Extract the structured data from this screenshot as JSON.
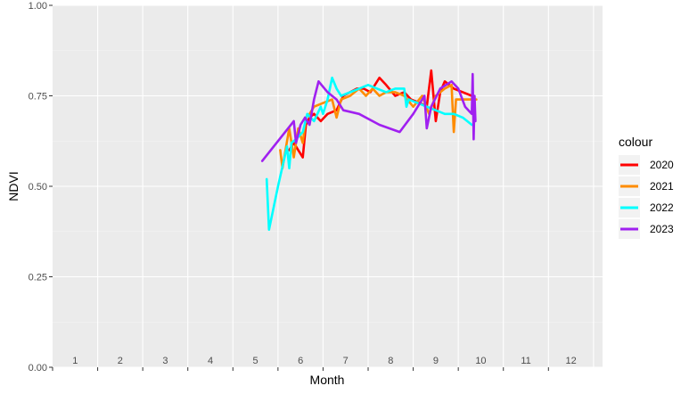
{
  "chart_data": {
    "type": "line",
    "title": "",
    "xlabel": "Month",
    "ylabel": "NDVI",
    "ylim": [
      0,
      1
    ],
    "xlim": [
      0.5,
      12.7
    ],
    "y_ticks": [
      "0.00",
      "0.25",
      "0.50",
      "0.75",
      "1.00"
    ],
    "x_tick_labels": [
      "1",
      "2",
      "3",
      "4",
      "5",
      "6",
      "7",
      "8",
      "9",
      "10",
      "11",
      "12"
    ],
    "grid": true,
    "legend": {
      "title": "colour",
      "placement": "right"
    },
    "series": [
      {
        "name": "2020",
        "color": "#ff0000",
        "points": [
          [
            5.75,
            0.6
          ],
          [
            5.85,
            0.62
          ],
          [
            5.95,
            0.6
          ],
          [
            6.05,
            0.58
          ],
          [
            6.12,
            0.67
          ],
          [
            6.2,
            0.69
          ],
          [
            6.3,
            0.7
          ],
          [
            6.45,
            0.68
          ],
          [
            6.6,
            0.7
          ],
          [
            6.8,
            0.71
          ],
          [
            6.95,
            0.75
          ],
          [
            7.1,
            0.76
          ],
          [
            7.25,
            0.77
          ],
          [
            7.4,
            0.77
          ],
          [
            7.55,
            0.76
          ],
          [
            7.75,
            0.8
          ],
          [
            7.9,
            0.78
          ],
          [
            8.1,
            0.75
          ],
          [
            8.3,
            0.76
          ],
          [
            8.45,
            0.74
          ],
          [
            8.65,
            0.73
          ],
          [
            8.8,
            0.72
          ],
          [
            8.9,
            0.82
          ],
          [
            9.0,
            0.68
          ],
          [
            9.1,
            0.76
          ],
          [
            9.2,
            0.79
          ],
          [
            9.4,
            0.77
          ],
          [
            9.6,
            0.76
          ],
          [
            9.8,
            0.75
          ]
        ]
      },
      {
        "name": "2021",
        "color": "#ff8c00",
        "points": [
          [
            5.55,
            0.6
          ],
          [
            5.6,
            0.55
          ],
          [
            5.68,
            0.61
          ],
          [
            5.75,
            0.66
          ],
          [
            5.85,
            0.58
          ],
          [
            5.95,
            0.66
          ],
          [
            6.05,
            0.62
          ],
          [
            6.12,
            0.69
          ],
          [
            6.2,
            0.7
          ],
          [
            6.3,
            0.72
          ],
          [
            6.5,
            0.73
          ],
          [
            6.7,
            0.74
          ],
          [
            6.8,
            0.69
          ],
          [
            6.9,
            0.74
          ],
          [
            7.1,
            0.75
          ],
          [
            7.3,
            0.77
          ],
          [
            7.45,
            0.75
          ],
          [
            7.6,
            0.77
          ],
          [
            7.75,
            0.75
          ],
          [
            7.9,
            0.76
          ],
          [
            8.1,
            0.76
          ],
          [
            8.3,
            0.75
          ],
          [
            8.5,
            0.72
          ],
          [
            8.7,
            0.75
          ],
          [
            8.85,
            0.7
          ],
          [
            9.0,
            0.75
          ],
          [
            9.2,
            0.77
          ],
          [
            9.35,
            0.78
          ],
          [
            9.4,
            0.65
          ],
          [
            9.45,
            0.74
          ],
          [
            9.6,
            0.74
          ],
          [
            9.9,
            0.74
          ]
        ]
      },
      {
        "name": "2022",
        "color": "#00ffff",
        "points": [
          [
            5.25,
            0.52
          ],
          [
            5.3,
            0.38
          ],
          [
            5.5,
            0.5
          ],
          [
            5.7,
            0.61
          ],
          [
            5.75,
            0.55
          ],
          [
            5.8,
            0.62
          ],
          [
            5.9,
            0.63
          ],
          [
            6.05,
            0.65
          ],
          [
            6.15,
            0.7
          ],
          [
            6.3,
            0.68
          ],
          [
            6.45,
            0.72
          ],
          [
            6.5,
            0.7
          ],
          [
            6.6,
            0.74
          ],
          [
            6.7,
            0.8
          ],
          [
            6.8,
            0.77
          ],
          [
            6.9,
            0.75
          ],
          [
            7.1,
            0.76
          ],
          [
            7.3,
            0.77
          ],
          [
            7.5,
            0.78
          ],
          [
            7.7,
            0.77
          ],
          [
            7.9,
            0.76
          ],
          [
            8.1,
            0.77
          ],
          [
            8.3,
            0.77
          ],
          [
            8.35,
            0.72
          ],
          [
            8.4,
            0.74
          ],
          [
            8.6,
            0.73
          ],
          [
            8.8,
            0.72
          ],
          [
            9.0,
            0.71
          ],
          [
            9.2,
            0.7
          ],
          [
            9.4,
            0.7
          ],
          [
            9.6,
            0.69
          ],
          [
            9.8,
            0.67
          ]
        ]
      },
      {
        "name": "2023",
        "color": "#a020f0",
        "points": [
          [
            5.15,
            0.57
          ],
          [
            5.85,
            0.68
          ],
          [
            5.9,
            0.62
          ],
          [
            6.0,
            0.67
          ],
          [
            6.1,
            0.69
          ],
          [
            6.2,
            0.67
          ],
          [
            6.3,
            0.74
          ],
          [
            6.4,
            0.79
          ],
          [
            6.6,
            0.76
          ],
          [
            6.8,
            0.74
          ],
          [
            6.95,
            0.71
          ],
          [
            7.3,
            0.7
          ],
          [
            7.75,
            0.67
          ],
          [
            8.2,
            0.65
          ],
          [
            8.5,
            0.7
          ],
          [
            8.75,
            0.75
          ],
          [
            8.8,
            0.66
          ],
          [
            8.9,
            0.72
          ],
          [
            9.1,
            0.77
          ],
          [
            9.35,
            0.79
          ],
          [
            9.5,
            0.77
          ],
          [
            9.65,
            0.72
          ],
          [
            9.8,
            0.7
          ],
          [
            9.82,
            0.81
          ],
          [
            9.84,
            0.63
          ],
          [
            9.86,
            0.75
          ],
          [
            9.88,
            0.68
          ]
        ]
      }
    ]
  }
}
